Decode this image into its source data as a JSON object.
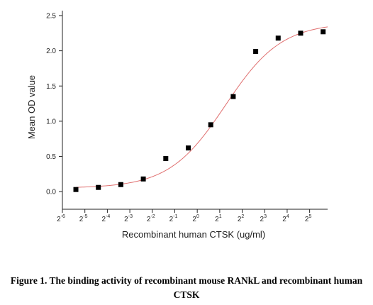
{
  "chart_data": {
    "type": "scatter",
    "xlabel": "Recombinant human CTSK (ug/ml)",
    "ylabel": "Mean OD value",
    "xscale": "log2",
    "xlim_exponent": [
      -6,
      5.8
    ],
    "x_ticks": [
      {
        "base": "2",
        "exp": "-6"
      },
      {
        "base": "2",
        "exp": "-5"
      },
      {
        "base": "2",
        "exp": "-4"
      },
      {
        "base": "2",
        "exp": "-3"
      },
      {
        "base": "2",
        "exp": "-2"
      },
      {
        "base": "2",
        "exp": "-1"
      },
      {
        "base": "2",
        "exp": "0"
      },
      {
        "base": "2",
        "exp": "1"
      },
      {
        "base": "2",
        "exp": "2"
      },
      {
        "base": "2",
        "exp": "3"
      },
      {
        "base": "2",
        "exp": "4"
      },
      {
        "base": "2",
        "exp": "5"
      }
    ],
    "ylim": [
      -0.25,
      2.55
    ],
    "y_ticks": [
      "0.0",
      "0.5",
      "1.0",
      "1.5",
      "2.0",
      "2.5"
    ],
    "y_tick_values": [
      0.0,
      0.5,
      1.0,
      1.5,
      2.0,
      2.5
    ],
    "series": [
      {
        "kind": "points",
        "marker": "square",
        "color": "#000000",
        "x_exponent": [
          -5.4,
          -4.4,
          -3.4,
          -2.4,
          -1.4,
          -0.4,
          0.6,
          1.6,
          2.6,
          3.6,
          4.6,
          5.6
        ],
        "y": [
          0.03,
          0.06,
          0.1,
          0.18,
          0.47,
          0.62,
          0.95,
          1.35,
          1.99,
          2.18,
          2.25,
          2.27
        ]
      },
      {
        "kind": "fit",
        "model": "logistic",
        "color": "#e07070",
        "params": {
          "bottom": 0.05,
          "top": 2.4,
          "x50_exponent": 1.25,
          "k": 0.8
        }
      }
    ]
  },
  "caption": "Figure 1. The binding activity of recombinant mouse RANkL and recombinant human CTSK"
}
